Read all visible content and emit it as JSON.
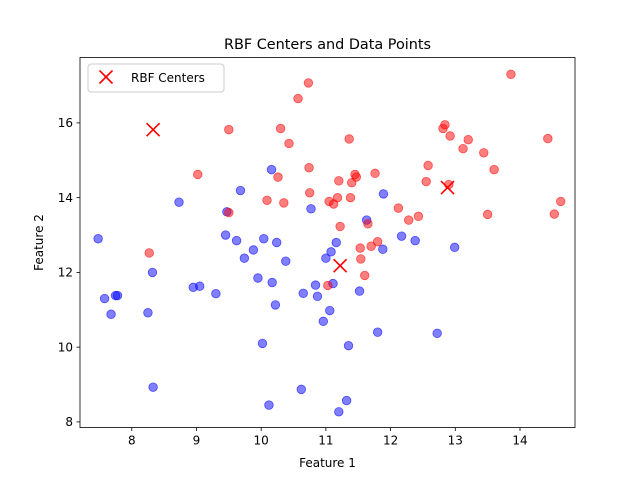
{
  "chart_data": {
    "type": "scatter",
    "title": "RBF Centers and Data Points",
    "xlabel": "Feature 1",
    "ylabel": "Feature 2",
    "xlim": [
      7.2,
      14.85
    ],
    "ylim": [
      7.85,
      17.75
    ],
    "xticks": [
      8,
      9,
      10,
      11,
      12,
      13,
      14
    ],
    "yticks": [
      8,
      10,
      12,
      14,
      16
    ],
    "grid": false,
    "legend": {
      "position": "top-left",
      "entries": [
        "RBF Centers"
      ]
    },
    "colors": {
      "class_blue": "#0000ff",
      "class_red": "#ff0000",
      "centers": "#ff0000"
    },
    "series": [
      {
        "color": "#0000ff",
        "marker": "circle",
        "points": [
          [
            7.48,
            12.9
          ],
          [
            7.58,
            11.3
          ],
          [
            7.68,
            10.88
          ],
          [
            7.75,
            11.38
          ],
          [
            7.78,
            11.38
          ],
          [
            8.25,
            10.92
          ],
          [
            8.32,
            12.0
          ],
          [
            8.33,
            8.93
          ],
          [
            8.73,
            13.88
          ],
          [
            8.95,
            11.6
          ],
          [
            9.05,
            11.63
          ],
          [
            9.3,
            11.43
          ],
          [
            9.45,
            13.0
          ],
          [
            9.47,
            13.62
          ],
          [
            9.62,
            12.85
          ],
          [
            9.68,
            14.19
          ],
          [
            9.74,
            12.38
          ],
          [
            9.88,
            12.6
          ],
          [
            9.95,
            11.85
          ],
          [
            10.02,
            10.1
          ],
          [
            10.04,
            12.9
          ],
          [
            10.12,
            8.45
          ],
          [
            10.16,
            14.75
          ],
          [
            10.17,
            11.73
          ],
          [
            10.22,
            11.13
          ],
          [
            10.24,
            12.8
          ],
          [
            10.38,
            12.3
          ],
          [
            10.62,
            8.87
          ],
          [
            10.65,
            11.44
          ],
          [
            10.77,
            13.7
          ],
          [
            10.84,
            11.66
          ],
          [
            10.87,
            11.36
          ],
          [
            10.96,
            10.69
          ],
          [
            11.0,
            12.38
          ],
          [
            11.06,
            10.98
          ],
          [
            11.08,
            12.55
          ],
          [
            11.11,
            11.7
          ],
          [
            11.16,
            12.8
          ],
          [
            11.2,
            8.27
          ],
          [
            11.32,
            8.57
          ],
          [
            11.35,
            10.04
          ],
          [
            11.52,
            11.5
          ],
          [
            11.63,
            13.4
          ],
          [
            11.8,
            10.4
          ],
          [
            11.88,
            12.62
          ],
          [
            11.89,
            14.1
          ],
          [
            12.17,
            12.97
          ],
          [
            12.38,
            12.85
          ],
          [
            12.72,
            10.37
          ],
          [
            12.99,
            12.67
          ]
        ]
      },
      {
        "color": "#ff0000",
        "marker": "circle",
        "points": [
          [
            8.27,
            12.52
          ],
          [
            9.02,
            14.62
          ],
          [
            9.5,
            13.6
          ],
          [
            9.5,
            15.82
          ],
          [
            10.09,
            13.93
          ],
          [
            10.26,
            14.55
          ],
          [
            10.3,
            15.85
          ],
          [
            10.35,
            13.86
          ],
          [
            10.43,
            15.45
          ],
          [
            10.57,
            16.65
          ],
          [
            10.73,
            17.07
          ],
          [
            10.74,
            14.8
          ],
          [
            10.75,
            14.13
          ],
          [
            11.03,
            11.65
          ],
          [
            11.05,
            13.9
          ],
          [
            11.12,
            13.83
          ],
          [
            11.18,
            14.0
          ],
          [
            11.2,
            14.45
          ],
          [
            11.22,
            13.23
          ],
          [
            11.36,
            15.57
          ],
          [
            11.38,
            14.0
          ],
          [
            11.4,
            14.4
          ],
          [
            11.45,
            14.62
          ],
          [
            11.47,
            14.55
          ],
          [
            11.53,
            12.65
          ],
          [
            11.54,
            12.36
          ],
          [
            11.6,
            11.92
          ],
          [
            11.65,
            13.3
          ],
          [
            11.7,
            12.7
          ],
          [
            11.76,
            14.65
          ],
          [
            11.8,
            12.82
          ],
          [
            12.12,
            13.72
          ],
          [
            12.28,
            13.4
          ],
          [
            12.43,
            13.5
          ],
          [
            12.55,
            14.43
          ],
          [
            12.58,
            14.86
          ],
          [
            12.81,
            15.85
          ],
          [
            12.84,
            15.95
          ],
          [
            12.9,
            14.35
          ],
          [
            12.92,
            15.65
          ],
          [
            13.12,
            15.31
          ],
          [
            13.2,
            15.55
          ],
          [
            13.44,
            15.2
          ],
          [
            13.5,
            13.55
          ],
          [
            13.6,
            14.75
          ],
          [
            13.86,
            17.3
          ],
          [
            14.43,
            15.58
          ],
          [
            14.53,
            13.56
          ],
          [
            14.63,
            13.9
          ]
        ]
      },
      {
        "name": "RBF Centers",
        "color": "#ff0000",
        "marker": "x",
        "points": [
          [
            8.33,
            15.82
          ],
          [
            11.22,
            12.18
          ],
          [
            12.88,
            14.27
          ]
        ]
      }
    ]
  }
}
